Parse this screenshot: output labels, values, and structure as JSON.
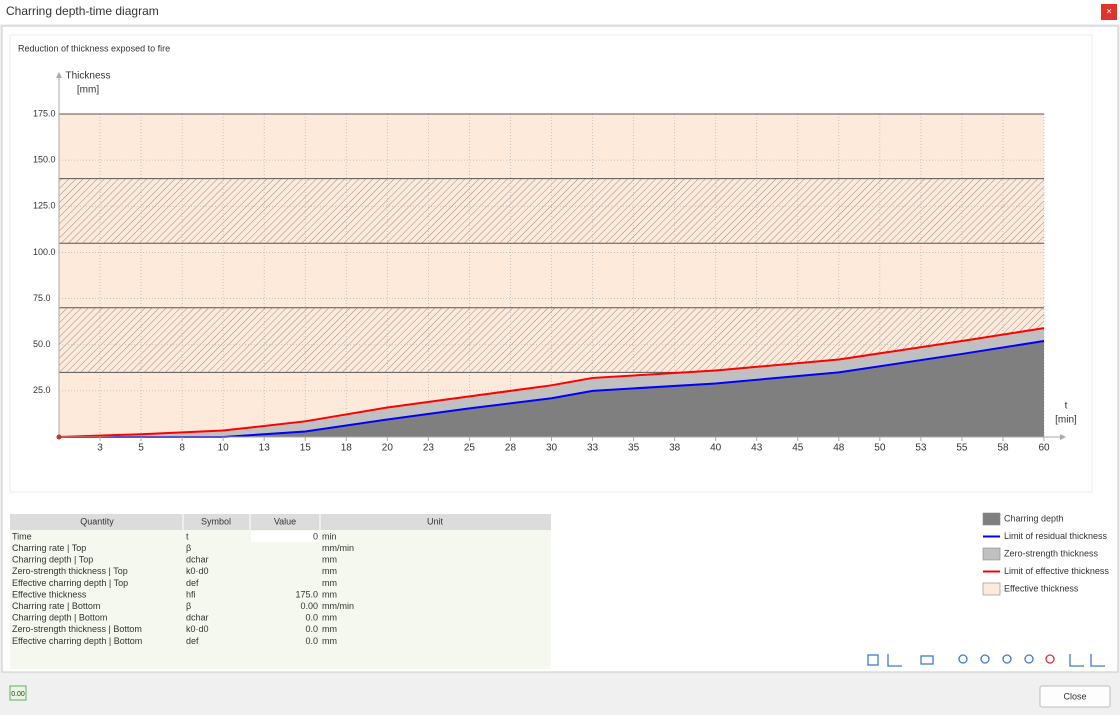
{
  "window": {
    "title": "Charring depth-time diagram",
    "close_glyph": "×"
  },
  "chart_data": {
    "type": "area",
    "title": "Reduction of thickness exposed to fire",
    "ylabel": [
      "Thickness",
      "[mm]"
    ],
    "xlabel": [
      "t",
      "[min]"
    ],
    "xlim": [
      0,
      60
    ],
    "ylim": [
      0,
      175
    ],
    "xticks": [
      {
        "value": 2.5,
        "label": "3"
      },
      5,
      {
        "value": 7.5,
        "label": "8"
      },
      10,
      {
        "value": 12.5,
        "label": "13"
      },
      15,
      {
        "value": 17.5,
        "label": "18"
      },
      20,
      {
        "value": 22.5,
        "label": "23"
      },
      25,
      {
        "value": 27.5,
        "label": "28"
      },
      30,
      {
        "value": 32.5,
        "label": "33"
      },
      35,
      {
        "value": 37.5,
        "label": "38"
      },
      40,
      {
        "value": 42.5,
        "label": "43"
      },
      45,
      {
        "value": 47.5,
        "label": "48"
      },
      50,
      {
        "value": 52.5,
        "label": "53"
      },
      55,
      {
        "value": 57.5,
        "label": "58"
      },
      60
    ],
    "yticks": [
      {
        "value": 25,
        "label": "25.0"
      },
      {
        "value": 50,
        "label": "50.0"
      },
      {
        "value": 75,
        "label": "75.0"
      },
      {
        "value": 100,
        "label": "100.0"
      },
      {
        "value": 125,
        "label": "125.0"
      },
      {
        "value": 150,
        "label": "150.0"
      },
      {
        "value": 175,
        "label": "175.0"
      }
    ],
    "grid": true,
    "layers": [
      {
        "from": 0,
        "to": 35,
        "hatched": false
      },
      {
        "from": 35,
        "to": 70,
        "hatched": true
      },
      {
        "from": 70,
        "to": 105,
        "hatched": false
      },
      {
        "from": 105,
        "to": 140,
        "hatched": true
      },
      {
        "from": 140,
        "to": 175,
        "hatched": false
      }
    ],
    "x": [
      0,
      5,
      10,
      15,
      20,
      25,
      30,
      32.5,
      40,
      47.5,
      55,
      60
    ],
    "series": [
      {
        "name": "Charring depth",
        "color": "#7f7f7f",
        "kind": "area",
        "values": [
          0,
          0,
          0,
          3,
          9.5,
          15.5,
          21,
          25,
          29,
          35,
          45,
          52
        ]
      },
      {
        "name": "Limit of residual thickness",
        "color": "#0000ff",
        "kind": "line",
        "values": [
          0,
          0,
          0,
          3,
          9.5,
          15.5,
          21,
          25,
          29,
          35,
          45,
          52
        ]
      },
      {
        "name": "Zero-strength thickness",
        "color": "#c0c0c0",
        "kind": "band",
        "values": [
          0,
          1.5,
          3.5,
          8.5,
          16,
          22,
          28,
          32,
          36,
          42,
          52,
          59
        ]
      },
      {
        "name": "Limit of effective thickness",
        "color": "#ff0000",
        "kind": "line",
        "values": [
          0,
          1.5,
          3.5,
          8.5,
          16,
          22,
          28,
          32,
          36,
          42,
          52,
          59
        ]
      },
      {
        "name": "Effective thickness",
        "color": "#fdeadb",
        "kind": "background"
      }
    ]
  },
  "table": {
    "header": [
      "Quantity",
      "Symbol",
      "Value",
      "Unit"
    ],
    "rows": [
      {
        "quantity": "Time",
        "symbol": "t",
        "value": "0",
        "unit": "min"
      },
      {
        "quantity": "Charring rate | Top",
        "symbol": "β",
        "unit": "mm/min"
      },
      {
        "quantity": "Charring depth | Top",
        "symbol": "dchar",
        "unit": "mm"
      },
      {
        "quantity": "Zero-strength thickness | Top",
        "symbol": "k0·d0",
        "unit": "mm"
      },
      {
        "quantity": "Effective charring depth | Top",
        "symbol": "def",
        "unit": "mm"
      },
      {
        "quantity": "Effective thickness",
        "symbol": "hfi",
        "value": "175.0",
        "unit": "mm"
      },
      {
        "quantity": "Charring rate | Bottom",
        "symbol": "β",
        "value": "0.00",
        "unit": "mm/min"
      },
      {
        "quantity": "Charring depth | Bottom",
        "symbol": "dchar",
        "value": "0.0",
        "unit": "mm"
      },
      {
        "quantity": "Zero-strength thickness | Bottom",
        "symbol": "k0·d0",
        "value": "0.0",
        "unit": "mm"
      },
      {
        "quantity": "Effective charring depth | Bottom",
        "symbol": "def",
        "value": "0.0",
        "unit": "mm"
      }
    ]
  },
  "footer": {
    "status_icon": "0.00",
    "close_button": "Close"
  }
}
